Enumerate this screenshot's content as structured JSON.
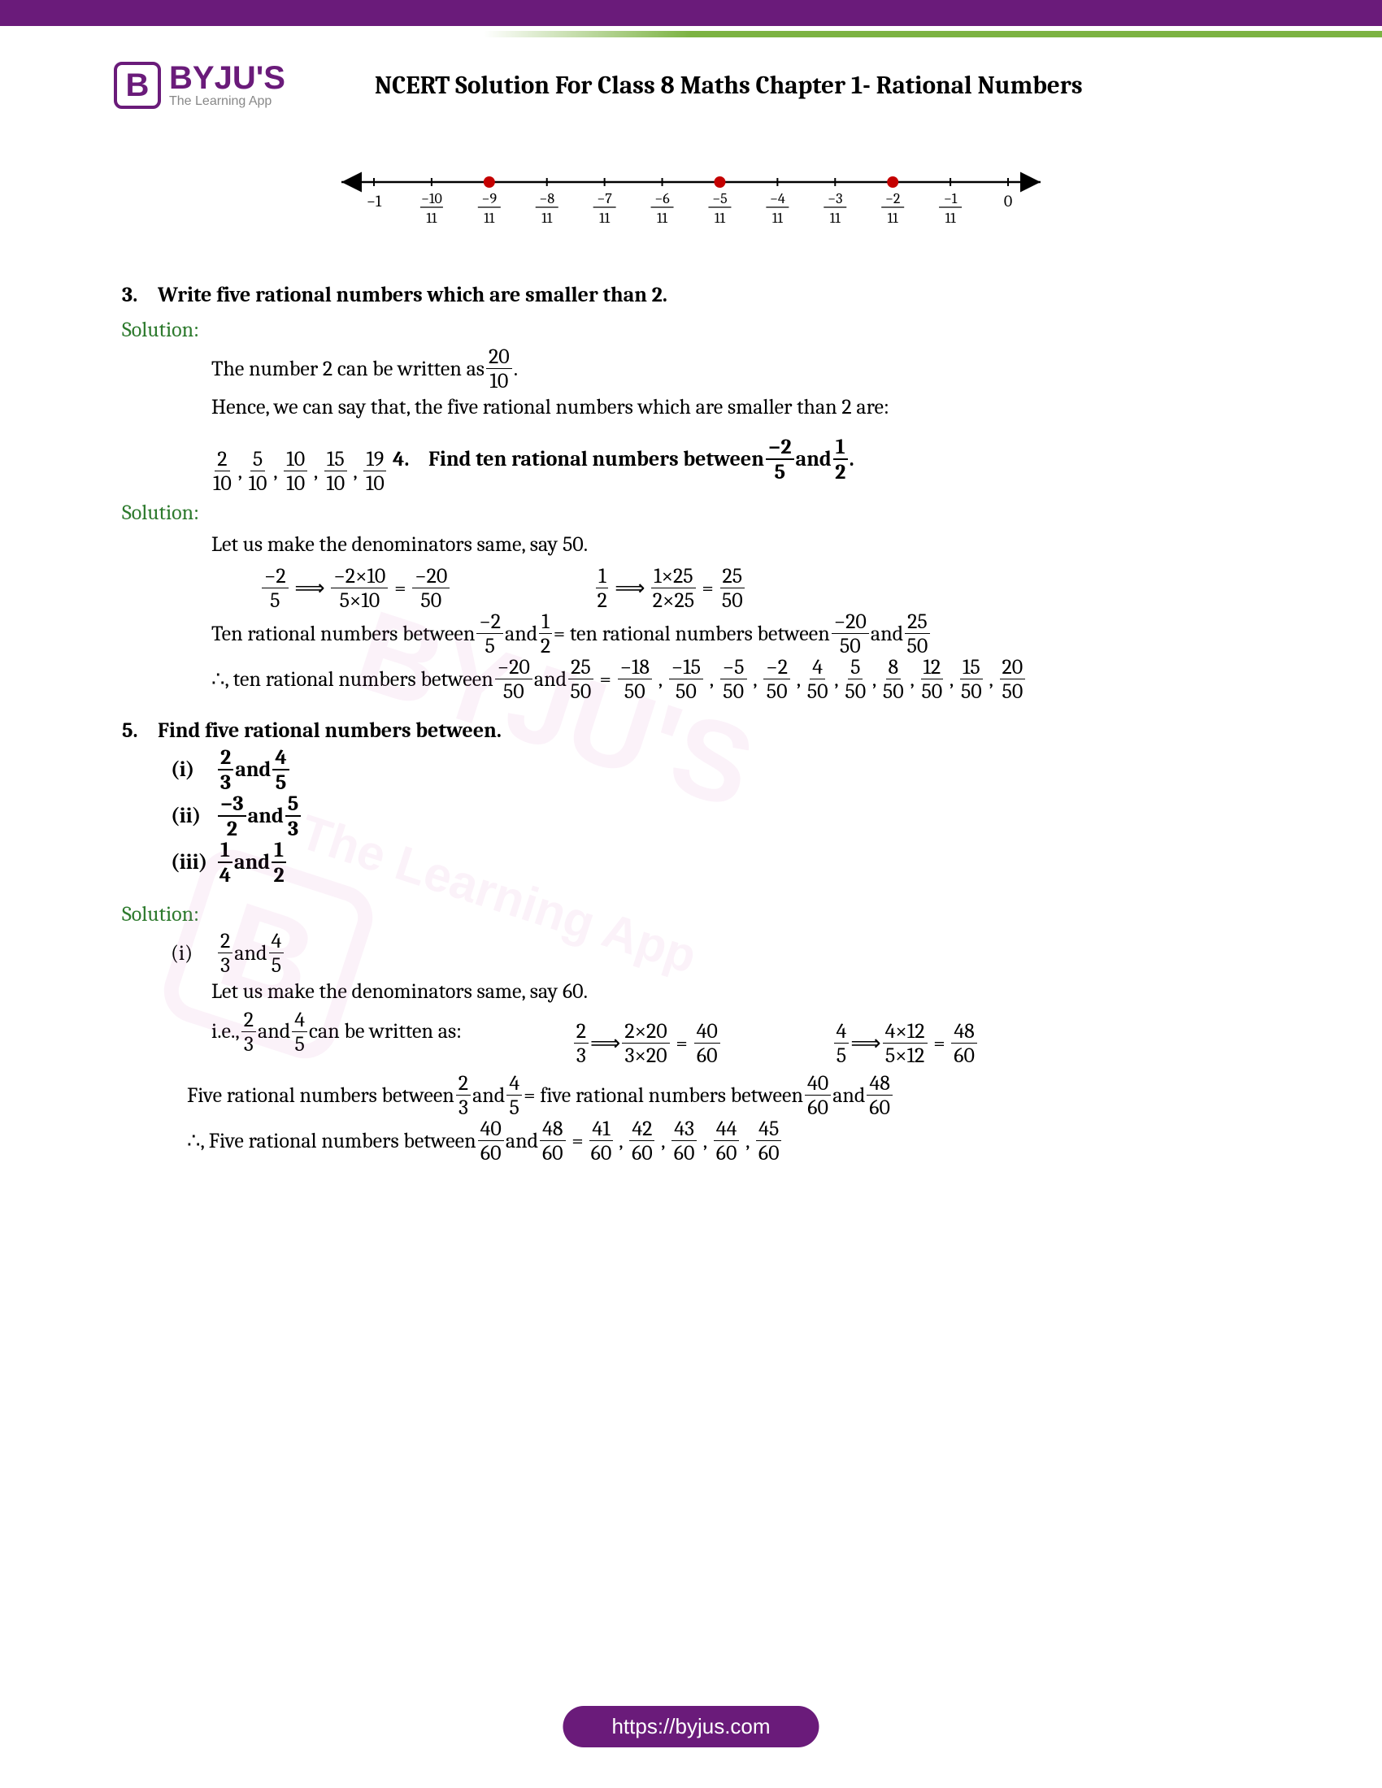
{
  "header": {
    "logo_letter": "B",
    "logo_name": "BYJU'S",
    "logo_tag": "The Learning App",
    "title": "NCERT Solution For Class 8 Maths Chapter 1- Rational Numbers"
  },
  "colors": {
    "purple": "#6a1b7a",
    "green": "#7cb342",
    "solution": "#2d7a2d",
    "numberline_point": "#c40000"
  },
  "numberline": {
    "start": -1.0,
    "end": 0.0,
    "ticks": [
      "−1",
      "−10/11",
      "−9/11",
      "−8/11",
      "−7/11",
      "−6/11",
      "−5/11",
      "−4/11",
      "−3/11",
      "−2/11",
      "−1/11",
      "0"
    ],
    "marked_points": [
      "−9/11",
      "−5/11",
      "−2/11"
    ]
  },
  "q3": {
    "num": "3.",
    "text": "Write five rational numbers which are smaller than 2.",
    "sol_label": "Solution:",
    "line1a": "The number 2 can be written as ",
    "frac1": {
      "n": "20",
      "d": "10"
    },
    "line1b": ".",
    "line2": "Hence, we can say that, the five rational numbers which are smaller than 2 are:",
    "answers": [
      {
        "n": "2",
        "d": "10"
      },
      {
        "n": "5",
        "d": "10"
      },
      {
        "n": "10",
        "d": "10"
      },
      {
        "n": "15",
        "d": "10"
      },
      {
        "n": "19",
        "d": "10"
      }
    ]
  },
  "q4": {
    "num": "4.",
    "text_a": "Find ten rational numbers between ",
    "f1": {
      "n": "−2",
      "d": "5"
    },
    "mid": " and ",
    "f2": {
      "n": "1",
      "d": "2"
    },
    "text_b": ".",
    "sol_label": "Solution:",
    "line1": "Let us make the denominators same, say 50.",
    "step1": {
      "a": {
        "n": "−2",
        "d": "5"
      },
      "b": {
        "n": "−2×10",
        "d": "5×10"
      },
      "c": {
        "n": "−20",
        "d": "50"
      }
    },
    "step2": {
      "a": {
        "n": "1",
        "d": "2"
      },
      "b": {
        "n": "1×25",
        "d": "2×25"
      },
      "c": {
        "n": "25",
        "d": "50"
      }
    },
    "line3a": "Ten rational numbers between ",
    "line3b": " = ten rational numbers between ",
    "f3": {
      "n": "−20",
      "d": "50"
    },
    "f4": {
      "n": "25",
      "d": "50"
    },
    "line4a": "∴, ten rational numbers between ",
    "answers": [
      {
        "n": "−18",
        "d": "50"
      },
      {
        "n": "−15",
        "d": "50"
      },
      {
        "n": "−5",
        "d": "50"
      },
      {
        "n": "−2",
        "d": "50"
      },
      {
        "n": "4",
        "d": "50"
      },
      {
        "n": "5",
        "d": "50"
      },
      {
        "n": "8",
        "d": "50"
      },
      {
        "n": "12",
        "d": "50"
      },
      {
        "n": "15",
        "d": "50"
      },
      {
        "n": "20",
        "d": "50"
      }
    ]
  },
  "q5": {
    "num": "5.",
    "text": "Find five rational numbers between.",
    "parts": [
      {
        "label": "(i)",
        "a": {
          "n": "2",
          "d": "3"
        },
        "mid": " and ",
        "b": {
          "n": "4",
          "d": "5"
        }
      },
      {
        "label": "(ii)",
        "a": {
          "n": "−3",
          "d": "2"
        },
        "mid": " and ",
        "b": {
          "n": "5",
          "d": "3"
        }
      },
      {
        "label": "(iii)",
        "a": {
          "n": "1",
          "d": "4"
        },
        "mid": "and ",
        "b": {
          "n": "1",
          "d": "2"
        }
      }
    ],
    "sol_label": "Solution:",
    "sol_i": {
      "label": "(i)",
      "a": {
        "n": "2",
        "d": "3"
      },
      "mid": " and ",
      "b": {
        "n": "4",
        "d": "5"
      },
      "line1": "Let us make the denominators same, say 60.",
      "line2a": "i.e., ",
      "line2b": " can be written as:",
      "step1": {
        "a": {
          "n": "2",
          "d": "3"
        },
        "b": {
          "n": "2×20",
          "d": "3×20"
        },
        "c": {
          "n": "40",
          "d": "60"
        }
      },
      "step2": {
        "a": {
          "n": "4",
          "d": "5"
        },
        "b": {
          "n": "4×12",
          "d": "5×12"
        },
        "c": {
          "n": "48",
          "d": "60"
        }
      },
      "line3a": "Five rational numbers between ",
      "line3b": " = five rational numbers between ",
      "f3": {
        "n": "40",
        "d": "60"
      },
      "f4": {
        "n": "48",
        "d": "60"
      },
      "line4a": "∴, Five rational numbers between ",
      "answers": [
        {
          "n": "41",
          "d": "60"
        },
        {
          "n": "42",
          "d": "60"
        },
        {
          "n": "43",
          "d": "60"
        },
        {
          "n": "44",
          "d": "60"
        },
        {
          "n": "45",
          "d": "60"
        }
      ]
    }
  },
  "footer": {
    "url": "https://byjus.com"
  },
  "watermark": {
    "text": "BYJU'S",
    "sub": "The Learning App",
    "logo": "B"
  }
}
